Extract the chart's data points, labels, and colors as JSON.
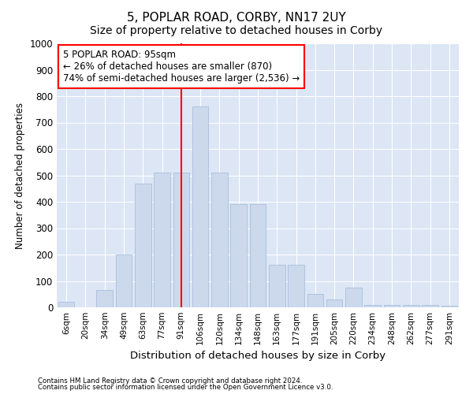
{
  "title": "5, POPLAR ROAD, CORBY, NN17 2UY",
  "subtitle": "Size of property relative to detached houses in Corby",
  "xlabel": "Distribution of detached houses by size in Corby",
  "ylabel": "Number of detached properties",
  "categories": [
    "6sqm",
    "20sqm",
    "34sqm",
    "49sqm",
    "63sqm",
    "77sqm",
    "91sqm",
    "106sqm",
    "120sqm",
    "134sqm",
    "148sqm",
    "163sqm",
    "177sqm",
    "191sqm",
    "205sqm",
    "220sqm",
    "234sqm",
    "248sqm",
    "262sqm",
    "277sqm",
    "291sqm"
  ],
  "values": [
    20,
    0,
    65,
    200,
    470,
    510,
    510,
    760,
    510,
    390,
    390,
    160,
    160,
    50,
    30,
    75,
    10,
    10,
    10,
    10,
    5
  ],
  "bar_color": "#ccd9ed",
  "bar_edge_color": "#a0b8d8",
  "vline_x_index": 6,
  "vline_color": "red",
  "annotation_text": "5 POPLAR ROAD: 95sqm\n← 26% of detached houses are smaller (870)\n74% of semi-detached houses are larger (2,536) →",
  "annotation_box_color": "white",
  "annotation_box_edge": "red",
  "bg_color": "#dce6f5",
  "grid_color": "white",
  "footer_line1": "Contains HM Land Registry data © Crown copyright and database right 2024.",
  "footer_line2": "Contains public sector information licensed under the Open Government Licence v3.0.",
  "ylim": [
    0,
    1000
  ],
  "yticks": [
    0,
    100,
    200,
    300,
    400,
    500,
    600,
    700,
    800,
    900,
    1000
  ],
  "title_fontsize": 11,
  "subtitle_fontsize": 10
}
